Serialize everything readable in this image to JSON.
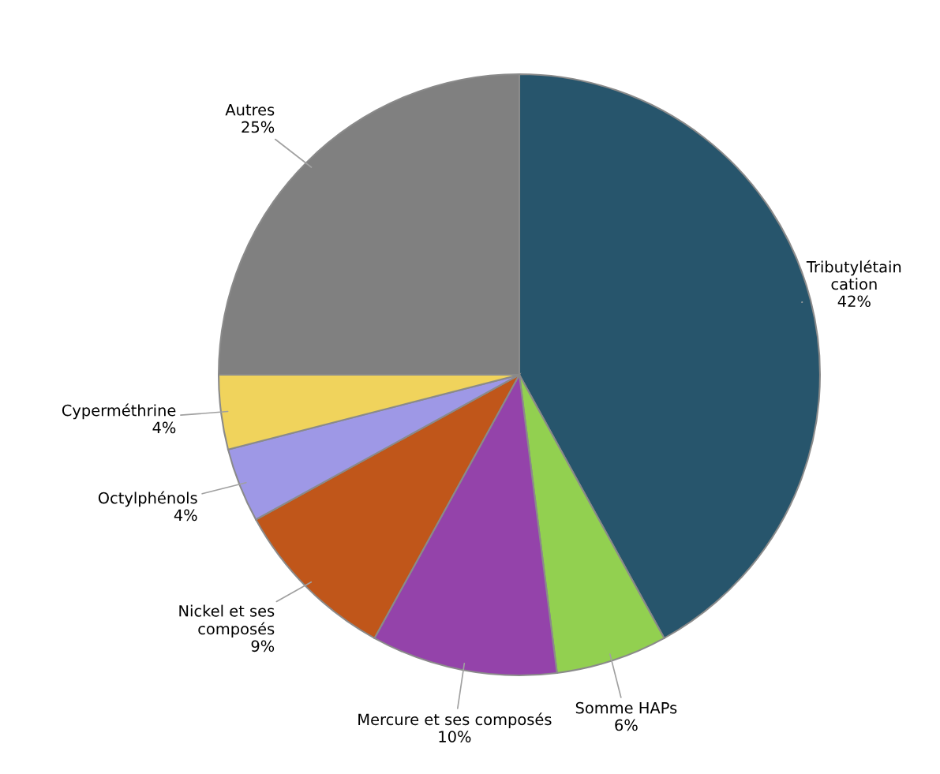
{
  "chart_data": {
    "type": "pie",
    "categories": [
      "Tributylétain\ncation",
      "Somme HAPs",
      "Mercure et ses composés",
      "Nickel et ses\ncomposés",
      "Octylphénols",
      "Cyperméthrine",
      "Autres"
    ],
    "values": [
      42,
      6,
      10,
      9,
      4,
      4,
      25
    ],
    "colors": [
      "#27556c",
      "#92d050",
      "#9443aa",
      "#c0561a",
      "#9e98e6",
      "#f0d35c",
      "#808080"
    ],
    "value_labels": [
      "42%",
      "6%",
      "10%",
      "9%",
      "4%",
      "4%",
      "25%"
    ]
  }
}
